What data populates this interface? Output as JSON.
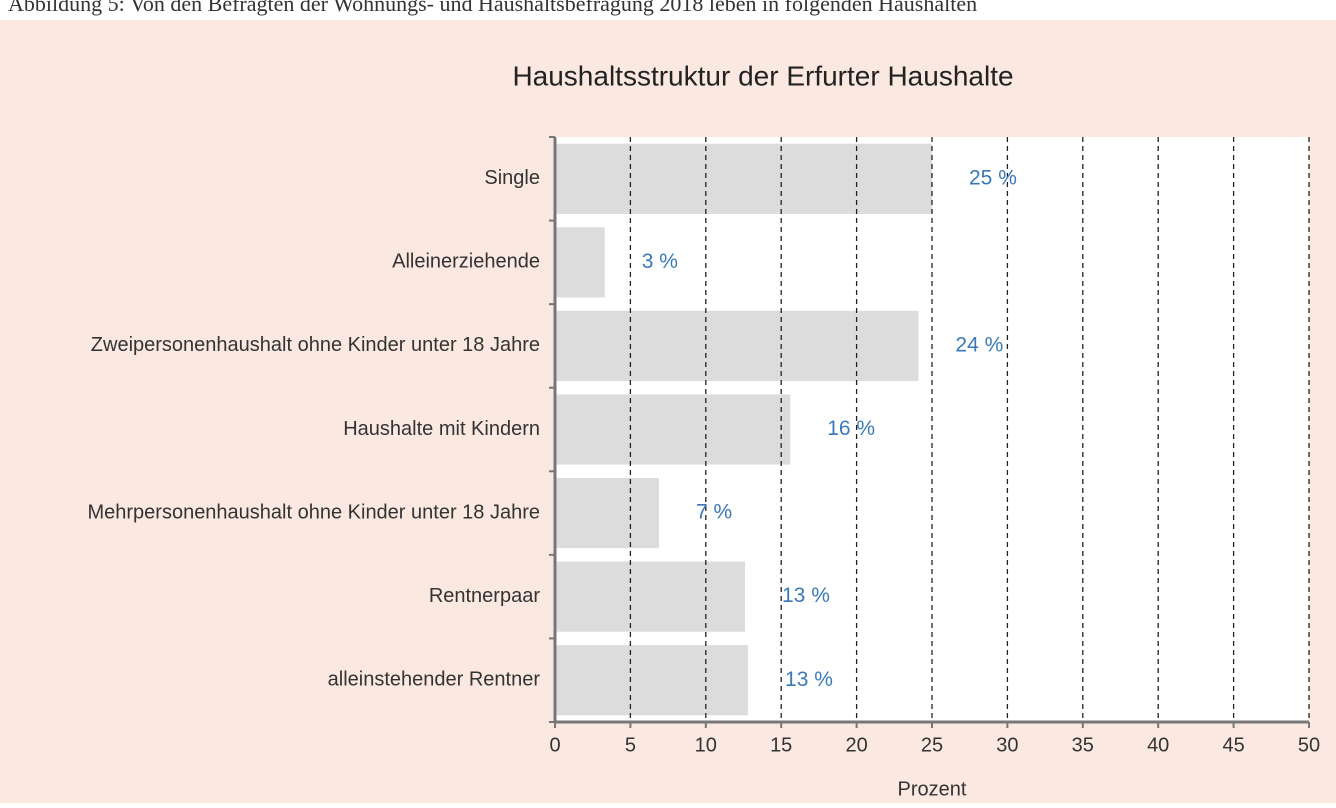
{
  "caption": "Abbildung 5: Von den Befragten der Wohnungs- und Haushaltsbefragung 2018 leben in folgenden Haushalten",
  "chart_data": {
    "type": "hbar",
    "title": "Haushaltsstruktur der Erfurter Haushalte",
    "categories": [
      "Single",
      "Alleinerziehende",
      "Zweipersonenhaushalt ohne Kinder unter 18 Jahre",
      "Haushalte mit Kindern",
      "Mehrpersonenhaushalt ohne Kinder unter 18 Jahre",
      "Rentnerpaar",
      "alleinstehender Rentner"
    ],
    "values": [
      25,
      3.3,
      24.1,
      15.6,
      6.9,
      12.6,
      12.8
    ],
    "value_labels": [
      "25 %",
      "3 %",
      "24 %",
      "16 %",
      "7 %",
      "13 %",
      "13 %"
    ],
    "color": "#dcdcdc",
    "label_color": "#3a7ab8",
    "xlabel": "Prozent",
    "xlim": [
      0,
      50
    ],
    "xticks": [
      0,
      5,
      10,
      15,
      20,
      25,
      30,
      35,
      40,
      45,
      50
    ],
    "grid": true
  }
}
